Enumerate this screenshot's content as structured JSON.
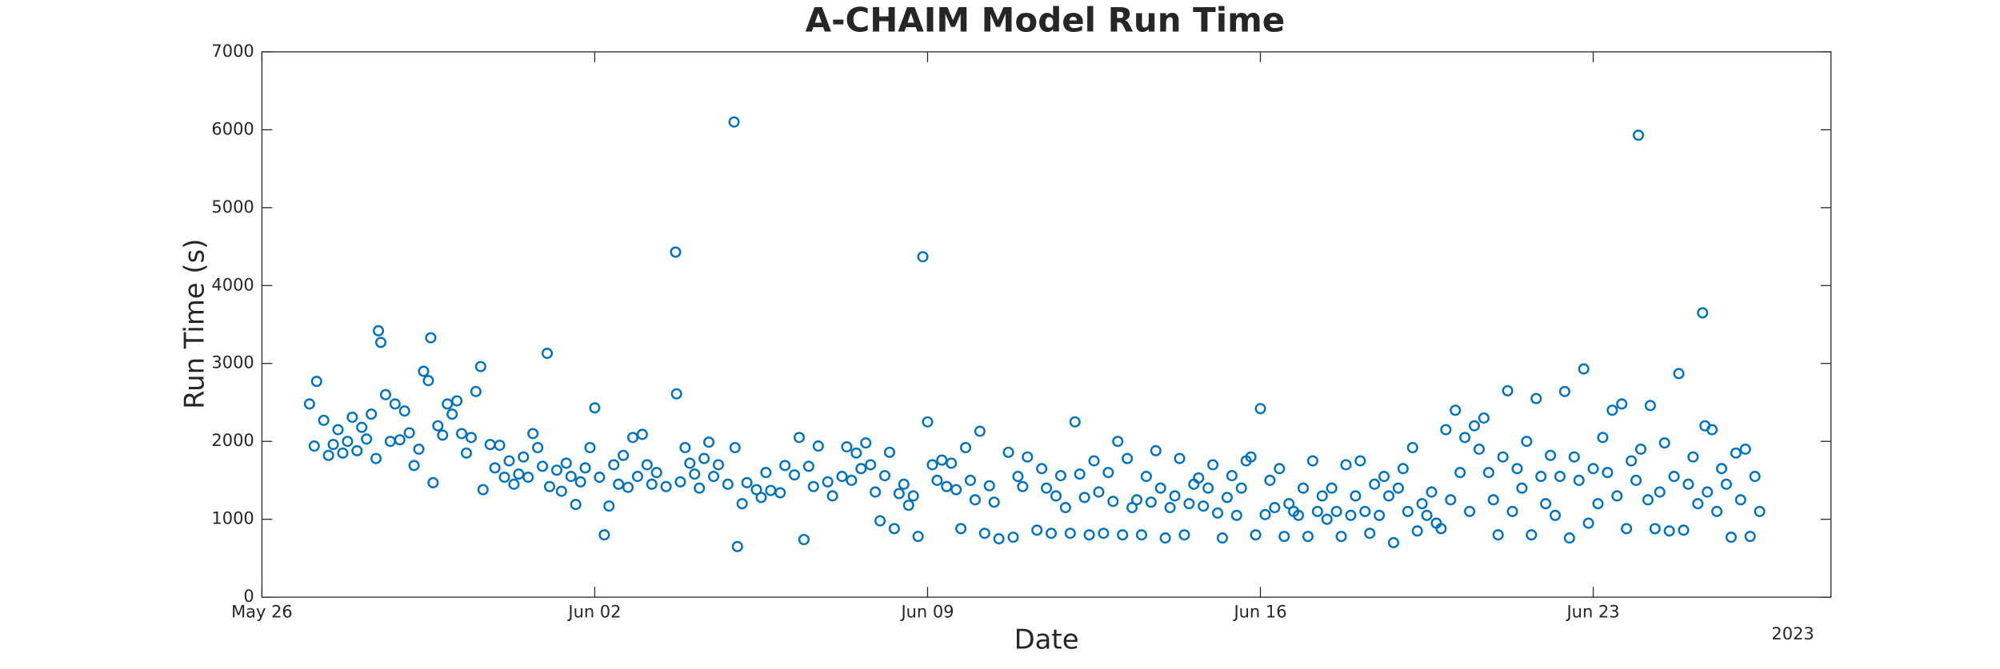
{
  "chart_data": {
    "type": "scatter",
    "title": "A-CHAIM Model Run Time",
    "x_label": "Date",
    "y_label": "Run Time (s)",
    "x_axis_year": "2023",
    "color": "#0072BD",
    "marker": "open-circle",
    "grid": false,
    "xlim": [
      0,
      33
    ],
    "ylim": [
      0,
      7000
    ],
    "xticks": [
      {
        "value": 0,
        "label": "May 26"
      },
      {
        "value": 7,
        "label": "Jun 02"
      },
      {
        "value": 14,
        "label": "Jun 09"
      },
      {
        "value": 21,
        "label": "Jun 16"
      },
      {
        "value": 28,
        "label": "Jun 23"
      }
    ],
    "yticks": [
      0,
      1000,
      2000,
      3000,
      4000,
      5000,
      6000,
      7000
    ],
    "x": [
      1.0,
      1.1,
      1.15,
      1.3,
      1.4,
      1.5,
      1.6,
      1.7,
      1.8,
      1.9,
      2.0,
      2.1,
      2.2,
      2.3,
      2.4,
      2.45,
      2.5,
      2.6,
      2.7,
      2.8,
      2.9,
      3.0,
      3.1,
      3.2,
      3.3,
      3.4,
      3.5,
      3.55,
      3.6,
      3.7,
      3.8,
      3.9,
      4.0,
      4.1,
      4.2,
      4.3,
      4.4,
      4.5,
      4.6,
      4.65,
      4.8,
      4.9,
      5.0,
      5.1,
      5.2,
      5.3,
      5.4,
      5.5,
      5.6,
      5.7,
      5.8,
      5.9,
      6.0,
      6.05,
      6.2,
      6.3,
      6.4,
      6.5,
      6.6,
      6.7,
      6.8,
      6.9,
      7.0,
      7.1,
      7.2,
      7.3,
      7.4,
      7.5,
      7.6,
      7.7,
      7.8,
      7.9,
      8.0,
      8.1,
      8.2,
      8.3,
      8.5,
      8.7,
      8.72,
      8.8,
      8.9,
      9.0,
      9.1,
      9.2,
      9.3,
      9.4,
      9.5,
      9.6,
      9.8,
      9.93,
      9.95,
      10.0,
      10.1,
      10.2,
      10.4,
      10.5,
      10.6,
      10.7,
      10.9,
      11.0,
      11.2,
      11.3,
      11.4,
      11.5,
      11.6,
      11.7,
      11.9,
      12.0,
      12.2,
      12.3,
      12.4,
      12.5,
      12.6,
      12.7,
      12.8,
      12.9,
      13.0,
      13.1,
      13.2,
      13.3,
      13.4,
      13.5,
      13.6,
      13.7,
      13.8,
      13.9,
      14.0,
      14.1,
      14.2,
      14.3,
      14.4,
      14.5,
      14.6,
      14.7,
      14.8,
      14.9,
      15.0,
      15.1,
      15.2,
      15.3,
      15.4,
      15.5,
      15.7,
      15.8,
      15.9,
      16.0,
      16.1,
      16.3,
      16.4,
      16.5,
      16.6,
      16.7,
      16.8,
      16.9,
      17.0,
      17.1,
      17.2,
      17.3,
      17.4,
      17.5,
      17.6,
      17.7,
      17.8,
      17.9,
      18.0,
      18.1,
      18.2,
      18.3,
      18.4,
      18.5,
      18.6,
      18.7,
      18.8,
      18.9,
      19.0,
      19.1,
      19.2,
      19.3,
      19.4,
      19.5,
      19.6,
      19.7,
      19.8,
      19.9,
      20.0,
      20.1,
      20.2,
      20.3,
      20.4,
      20.5,
      20.6,
      20.7,
      20.8,
      20.9,
      21.0,
      21.1,
      21.2,
      21.3,
      21.4,
      21.5,
      21.6,
      21.7,
      21.8,
      21.9,
      22.0,
      22.1,
      22.2,
      22.3,
      22.4,
      22.5,
      22.6,
      22.7,
      22.8,
      22.9,
      23.0,
      23.1,
      23.2,
      23.3,
      23.4,
      23.5,
      23.6,
      23.7,
      23.8,
      23.9,
      24.0,
      24.1,
      24.2,
      24.3,
      24.4,
      24.5,
      24.6,
      24.7,
      24.8,
      24.9,
      25.0,
      25.1,
      25.2,
      25.3,
      25.4,
      25.5,
      25.6,
      25.7,
      25.8,
      25.9,
      26.0,
      26.1,
      26.2,
      26.3,
      26.4,
      26.5,
      26.6,
      26.7,
      26.8,
      26.9,
      27.0,
      27.1,
      27.2,
      27.3,
      27.4,
      27.5,
      27.6,
      27.7,
      27.8,
      27.9,
      28.0,
      28.1,
      28.2,
      28.3,
      28.4,
      28.5,
      28.6,
      28.7,
      28.8,
      28.9,
      28.95,
      29.0,
      29.15,
      29.2,
      29.3,
      29.4,
      29.5,
      29.6,
      29.7,
      29.8,
      29.9,
      30.0,
      30.1,
      30.2,
      30.3,
      30.35,
      30.4,
      30.5,
      30.6,
      30.7,
      30.8,
      30.9,
      31.0,
      31.1,
      31.2,
      31.3,
      31.4,
      31.5
    ],
    "values": [
      2480,
      1940,
      2770,
      2270,
      1820,
      1960,
      2150,
      1850,
      2000,
      2310,
      1880,
      2180,
      2030,
      2350,
      1780,
      3420,
      3270,
      2600,
      2000,
      2480,
      2020,
      2390,
      2110,
      1690,
      1900,
      2900,
      2780,
      3330,
      1470,
      2200,
      2080,
      2480,
      2350,
      2520,
      2100,
      1850,
      2050,
      2640,
      2960,
      1380,
      1960,
      1660,
      1950,
      1540,
      1750,
      1450,
      1580,
      1800,
      1540,
      2100,
      1920,
      1680,
      3130,
      1420,
      1630,
      1360,
      1720,
      1550,
      1190,
      1480,
      1660,
      1920,
      2430,
      1540,
      800,
      1170,
      1700,
      1450,
      1820,
      1410,
      2050,
      1550,
      2090,
      1700,
      1450,
      1600,
      1420,
      4430,
      2610,
      1480,
      1920,
      1720,
      1580,
      1400,
      1780,
      1990,
      1550,
      1700,
      1450,
      6100,
      1920,
      650,
      1200,
      1470,
      1380,
      1280,
      1600,
      1370,
      1340,
      1690,
      1570,
      2050,
      740,
      1680,
      1420,
      1940,
      1480,
      1300,
      1550,
      1930,
      1500,
      1850,
      1650,
      1980,
      1700,
      1350,
      980,
      1560,
      1860,
      880,
      1330,
      1450,
      1180,
      1300,
      780,
      4370,
      2250,
      1700,
      1500,
      1760,
      1420,
      1720,
      1380,
      880,
      1920,
      1500,
      1250,
      2130,
      820,
      1430,
      1220,
      750,
      1860,
      770,
      1550,
      1420,
      1800,
      860,
      1650,
      1400,
      820,
      1300,
      1560,
      1150,
      820,
      2250,
      1580,
      1280,
      800,
      1750,
      1350,
      820,
      1600,
      1230,
      2000,
      800,
      1780,
      1150,
      1250,
      800,
      1550,
      1220,
      1880,
      1400,
      760,
      1150,
      1300,
      1780,
      800,
      1200,
      1450,
      1530,
      1170,
      1400,
      1700,
      1080,
      760,
      1280,
      1560,
      1050,
      1400,
      1750,
      1800,
      800,
      2420,
      1060,
      1500,
      1150,
      1650,
      780,
      1200,
      1100,
      1050,
      1400,
      780,
      1750,
      1100,
      1300,
      1000,
      1400,
      1100,
      780,
      1700,
      1050,
      1300,
      1750,
      1100,
      820,
      1450,
      1050,
      1550,
      1300,
      700,
      1400,
      1650,
      1100,
      1920,
      850,
      1200,
      1050,
      1350,
      950,
      880,
      2150,
      1250,
      2400,
      1600,
      2050,
      1100,
      2200,
      1900,
      2300,
      1600,
      1250,
      800,
      1800,
      2650,
      1100,
      1650,
      1400,
      2000,
      800,
      2550,
      1550,
      1200,
      1820,
      1050,
      1550,
      2640,
      760,
      1800,
      1500,
      2930,
      950,
      1650,
      1200,
      2050,
      1600,
      2400,
      1300,
      2480,
      880,
      1750,
      1500,
      5930,
      1900,
      1250,
      2460,
      880,
      1350,
      1980,
      850,
      1550,
      2870,
      860,
      1450,
      1800,
      1200,
      3650,
      2200,
      1350,
      2150,
      1100,
      1650,
      1450,
      770,
      1850,
      1250,
      1900,
      780,
      1550,
      1100
    ]
  }
}
